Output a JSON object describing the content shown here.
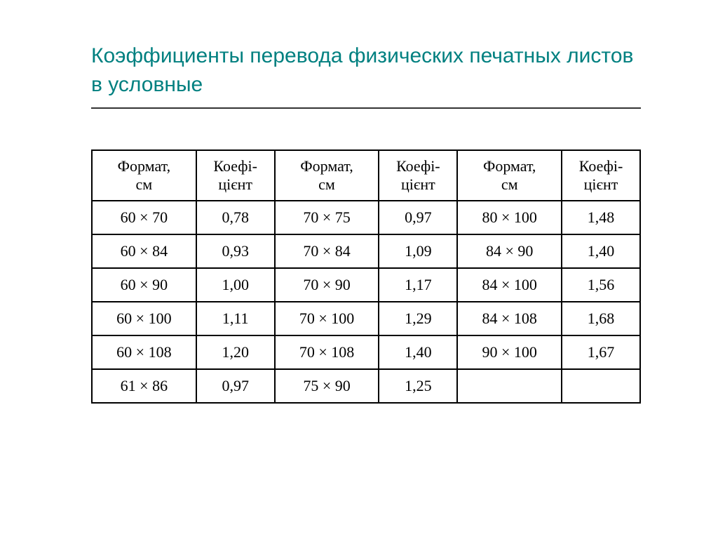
{
  "title": "Коэффициенты перевода физических печатных листов в условные",
  "table": {
    "headers": {
      "format": "Формат,\nсм",
      "coef": "Коефі-\nцієнт"
    },
    "columns": [
      "format",
      "coef",
      "format",
      "coef",
      "format",
      "coef"
    ],
    "rows": [
      [
        "60 × 70",
        "0,78",
        "70 × 75",
        "0,97",
        "80 × 100",
        "1,48"
      ],
      [
        "60 × 84",
        "0,93",
        "70 × 84",
        "1,09",
        "84 × 90",
        "1,40"
      ],
      [
        "60 × 90",
        "1,00",
        "70 × 90",
        "1,17",
        "84 × 100",
        "1,56"
      ],
      [
        "60 × 100",
        "1,11",
        "70 × 100",
        "1,29",
        "84 × 108",
        "1,68"
      ],
      [
        "60 × 108",
        "1,20",
        "70 × 108",
        "1,40",
        "90 × 100",
        "1,67"
      ],
      [
        "61 × 86",
        "0,97",
        "75 × 90",
        "1,25",
        "",
        ""
      ]
    ],
    "title_color": "#008080",
    "border_color": "#000000",
    "background_color": "#ffffff",
    "header_fontsize": 22,
    "cell_fontsize": 22
  }
}
